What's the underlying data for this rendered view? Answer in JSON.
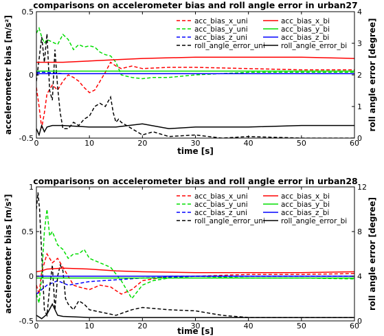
{
  "figure_labels": {
    "line_styles": {
      "uni": "dashed",
      "bi": "solid"
    },
    "colors": {
      "x": "#ff0000",
      "y": "#00dd00",
      "z": "#0000ff",
      "roll": "#000000"
    }
  },
  "chart_data": [
    {
      "type": "line",
      "title": "comparisons on accelerometer bias and roll angle error in urban27",
      "xlabel": "time [s]",
      "ylabel": "accelerometer bias [m/s²]",
      "ylabel_right": "roll angle error [degree]",
      "xlim": [
        0,
        60
      ],
      "ylim": [
        -0.5,
        0.5
      ],
      "ylim_right": [
        0,
        4
      ],
      "xticks": [
        "0",
        "10",
        "20",
        "30",
        "40",
        "50",
        "60"
      ],
      "yticks": [
        "-0.5",
        "0",
        "0.5"
      ],
      "yticks_right": [
        "0",
        "1",
        "2",
        "3",
        "4"
      ],
      "legend_position": "top-right",
      "series": [
        {
          "name": "acc_bias_x_uni",
          "axis": "left",
          "style": "dashed",
          "color": "#ff0000",
          "x": [
            0,
            0.5,
            1,
            1.5,
            2,
            3,
            4,
            5,
            6,
            7,
            8,
            9,
            10,
            11,
            12,
            13,
            14,
            15,
            16,
            18,
            20,
            25,
            30,
            40,
            50,
            60
          ],
          "y": [
            -0.1,
            -0.25,
            -0.42,
            -0.3,
            -0.15,
            -0.08,
            -0.12,
            -0.05,
            0.0,
            -0.02,
            -0.05,
            -0.1,
            -0.14,
            -0.12,
            -0.05,
            0.02,
            0.1,
            0.07,
            0.05,
            0.07,
            0.05,
            0.06,
            0.06,
            0.05,
            0.04,
            0.04
          ]
        },
        {
          "name": "acc_bias_y_uni",
          "axis": "left",
          "style": "dashed",
          "color": "#00dd00",
          "x": [
            0,
            0.5,
            1,
            1.5,
            2,
            3,
            4,
            5,
            6,
            7,
            8,
            9,
            10,
            11,
            12,
            13,
            14,
            15,
            16,
            18,
            20,
            22,
            25,
            30,
            40,
            50,
            60
          ],
          "y": [
            0.33,
            0.37,
            0.3,
            0.25,
            0.28,
            0.26,
            0.24,
            0.32,
            0.28,
            0.2,
            0.24,
            0.22,
            0.23,
            0.22,
            0.18,
            0.16,
            0.15,
            0.1,
            0.0,
            -0.02,
            -0.03,
            -0.02,
            -0.02,
            0.0,
            0.02,
            0.02,
            0.02
          ]
        },
        {
          "name": "acc_bias_z_uni",
          "axis": "left",
          "style": "dashed",
          "color": "#0000ff",
          "x": [
            0,
            2,
            5,
            10,
            20,
            30,
            40,
            50,
            60
          ],
          "y": [
            0.02,
            0.02,
            0.01,
            0.01,
            0.01,
            0.01,
            0.01,
            0.01,
            0.01
          ]
        },
        {
          "name": "roll_angle_error_uni",
          "axis": "right",
          "style": "dashed",
          "color": "#000000",
          "x": [
            0,
            0.5,
            1,
            1.5,
            2,
            2.5,
            3,
            3.5,
            4,
            4.5,
            5,
            6,
            7,
            8,
            9,
            10,
            11,
            12,
            13,
            14,
            14.5,
            15,
            15.5,
            16,
            18,
            20,
            22,
            25,
            30,
            35,
            40,
            50,
            60
          ],
          "y": [
            1.8,
            2.5,
            3.2,
            2.4,
            3.3,
            1.5,
            1.2,
            2.8,
            1.6,
            0.8,
            0.3,
            0.3,
            0.5,
            0.4,
            0.6,
            0.7,
            1.0,
            1.1,
            1.0,
            1.3,
            0.8,
            0.5,
            0.6,
            0.5,
            0.3,
            0.1,
            0.2,
            0.05,
            0.1,
            0.0,
            0.05,
            0.0,
            0.0
          ]
        },
        {
          "name": "acc_bias_x_bi",
          "axis": "left",
          "style": "solid",
          "color": "#ff0000",
          "x": [
            0,
            5,
            10,
            15,
            20,
            30,
            40,
            50,
            60
          ],
          "y": [
            0.1,
            0.1,
            0.11,
            0.12,
            0.13,
            0.14,
            0.14,
            0.14,
            0.13
          ]
        },
        {
          "name": "acc_bias_y_bi",
          "axis": "left",
          "style": "solid",
          "color": "#00dd00",
          "x": [
            0,
            5,
            10,
            15,
            20,
            30,
            40,
            50,
            60
          ],
          "y": [
            0.03,
            0.03,
            0.03,
            0.03,
            0.03,
            0.03,
            0.03,
            0.03,
            0.03
          ]
        },
        {
          "name": "acc_bias_z_bi",
          "axis": "left",
          "style": "solid",
          "color": "#0000ff",
          "x": [
            0,
            5,
            10,
            15,
            20,
            30,
            40,
            50,
            60
          ],
          "y": [
            0.01,
            0.01,
            0.01,
            0.01,
            0.01,
            0.01,
            0.01,
            0.01,
            0.01
          ]
        },
        {
          "name": "roll_angle_error_bi",
          "axis": "right",
          "style": "solid",
          "color": "#000000",
          "x": [
            0,
            0.5,
            1,
            1.5,
            2,
            3,
            5,
            10,
            15,
            20,
            25,
            30,
            40,
            50,
            60
          ],
          "y": [
            0.3,
            0.1,
            0.4,
            0.2,
            0.35,
            0.4,
            0.4,
            0.35,
            0.35,
            0.45,
            0.3,
            0.35,
            0.35,
            0.4,
            0.4
          ]
        }
      ]
    },
    {
      "type": "line",
      "title": "comparisons on accelerometer bias and roll angle error in urban28",
      "xlabel": "time [s]",
      "ylabel": "accelerometer bias [m/s²]",
      "ylabel_right": "roll angle error [degree]",
      "xlim": [
        0,
        60
      ],
      "ylim": [
        -0.5,
        1
      ],
      "ylim_right": [
        0,
        12
      ],
      "xticks": [
        "0",
        "10",
        "20",
        "30",
        "40",
        "50",
        "60"
      ],
      "yticks": [
        "-0.5",
        "0",
        "0.5",
        "1"
      ],
      "yticks_right": [
        "0",
        "4",
        "8",
        "12"
      ],
      "legend_position": "top-right",
      "series": [
        {
          "name": "acc_bias_x_uni",
          "axis": "left",
          "style": "dashed",
          "color": "#ff0000",
          "x": [
            0,
            0.5,
            1,
            1.5,
            2,
            3,
            4,
            5,
            6,
            7,
            8,
            10,
            12,
            14,
            16,
            18,
            20,
            25,
            30,
            40,
            50,
            60
          ],
          "y": [
            -0.1,
            -0.2,
            0.05,
            0.15,
            0.25,
            0.15,
            0.2,
            0.1,
            0.0,
            -0.1,
            -0.12,
            -0.15,
            -0.1,
            -0.12,
            -0.2,
            -0.15,
            -0.05,
            0.0,
            0.0,
            0.02,
            0.02,
            0.03
          ]
        },
        {
          "name": "acc_bias_y_uni",
          "axis": "left",
          "style": "dashed",
          "color": "#00dd00",
          "x": [
            0,
            0.5,
            1,
            1.5,
            2,
            2.5,
            3,
            4,
            5,
            6,
            7,
            8,
            9,
            10,
            12,
            14,
            16,
            18,
            20,
            22,
            25,
            30,
            40,
            50,
            60
          ],
          "y": [
            -0.2,
            -0.3,
            0.0,
            0.5,
            0.75,
            0.45,
            0.5,
            0.35,
            0.3,
            0.2,
            0.25,
            0.25,
            0.3,
            0.2,
            0.15,
            0.1,
            -0.05,
            -0.25,
            -0.1,
            -0.05,
            -0.02,
            0.0,
            -0.02,
            -0.02,
            -0.03
          ]
        },
        {
          "name": "acc_bias_z_uni",
          "axis": "left",
          "style": "dashed",
          "color": "#0000ff",
          "x": [
            0,
            1,
            2,
            4,
            6,
            8,
            10,
            15,
            20,
            30,
            40,
            50,
            60
          ],
          "y": [
            -0.2,
            -0.15,
            -0.1,
            -0.05,
            -0.1,
            -0.08,
            -0.06,
            -0.04,
            -0.02,
            0.0,
            0.0,
            0.0,
            0.0
          ]
        },
        {
          "name": "roll_angle_error_uni",
          "axis": "right",
          "style": "dashed",
          "color": "#000000",
          "x": [
            0,
            0.3,
            0.6,
            1,
            1.5,
            2,
            2.5,
            3,
            3.5,
            4,
            4.5,
            5,
            5.5,
            6,
            7,
            8,
            9,
            10,
            12,
            15,
            18,
            20,
            25,
            30,
            35,
            40,
            50,
            60
          ],
          "y": [
            10,
            11.5,
            10,
            6,
            1,
            0.5,
            3,
            5,
            1,
            4,
            5,
            4.5,
            2,
            1.5,
            1.0,
            1.8,
            1.5,
            1.0,
            0.8,
            0.5,
            1.0,
            1.2,
            1.0,
            0.9,
            0.5,
            0.3,
            0.3,
            0.3
          ]
        },
        {
          "name": "acc_bias_x_bi",
          "axis": "left",
          "style": "solid",
          "color": "#ff0000",
          "x": [
            0,
            1,
            2,
            5,
            10,
            15,
            20,
            30,
            40,
            50,
            60
          ],
          "y": [
            0.05,
            0.06,
            0.08,
            0.09,
            0.08,
            0.06,
            0.05,
            0.04,
            0.04,
            0.04,
            0.05
          ]
        },
        {
          "name": "acc_bias_y_bi",
          "axis": "left",
          "style": "solid",
          "color": "#00dd00",
          "x": [
            0,
            5,
            10,
            15,
            20,
            30,
            40,
            50,
            60
          ],
          "y": [
            -0.02,
            -0.02,
            -0.02,
            -0.02,
            -0.02,
            -0.02,
            -0.02,
            -0.02,
            -0.02
          ]
        },
        {
          "name": "acc_bias_z_bi",
          "axis": "left",
          "style": "solid",
          "color": "#0000ff",
          "x": [
            0,
            5,
            10,
            20,
            30,
            40,
            50,
            60
          ],
          "y": [
            0.0,
            0.0,
            0.0,
            0.0,
            0.0,
            0.0,
            0.0,
            0.0
          ]
        },
        {
          "name": "roll_angle_error_bi",
          "axis": "right",
          "style": "solid",
          "color": "#000000",
          "x": [
            0,
            1,
            2,
            3,
            4,
            5,
            10,
            15,
            20,
            30,
            40,
            50,
            60
          ],
          "y": [
            0.5,
            0.2,
            0.6,
            1.5,
            0.5,
            0.4,
            0.3,
            0.3,
            0.3,
            0.3,
            0.3,
            0.3,
            0.3
          ]
        }
      ]
    }
  ]
}
